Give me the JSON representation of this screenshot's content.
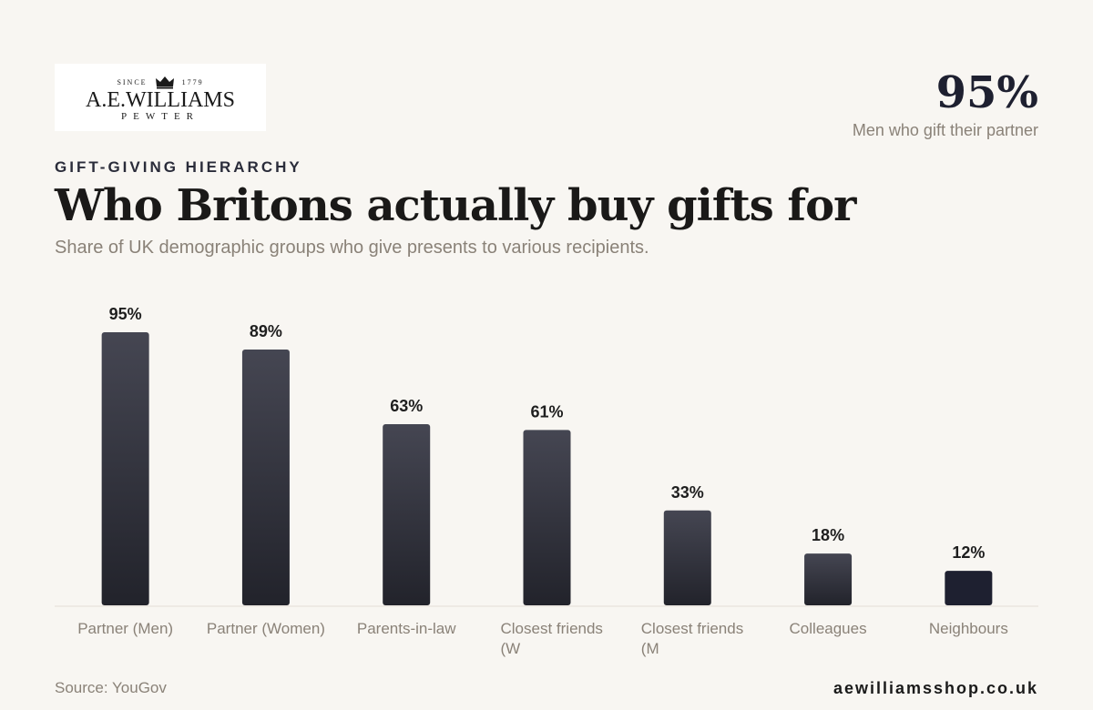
{
  "logo": {
    "since_text": "SINCE 1779",
    "brand": "A.E.WILLIAMS",
    "subtitle": "PEWTER",
    "icon": "crown-icon"
  },
  "headline_stat": {
    "value": "95%",
    "label": "Men who gift their partner"
  },
  "eyebrow": "GIFT-GIVING HIERARCHY",
  "title": "Who Britons actually buy gifts for",
  "subtitle": "Share of UK demographic groups who give presents to various recipients.",
  "source": "Source: YouGov",
  "site": "aewilliamsshop.co.uk",
  "colors": {
    "background": "#f8f6f2",
    "bar_top": "#454652",
    "bar_bottom": "#22232b",
    "accent_bar": "#1e2030",
    "muted_text": "#8a8278",
    "baseline": "#e3ded6"
  },
  "chart_data": {
    "type": "bar",
    "categories": [
      "Partner (Men)",
      "Partner (Women)",
      "Parents-in-law",
      "Closest friends (W",
      "Closest friends (M",
      "Colleagues",
      "Neighbours"
    ],
    "category_lines": [
      [
        "Partner (Men)"
      ],
      [
        "Partner (Women)"
      ],
      [
        "Parents-in-law"
      ],
      [
        "Closest friends",
        "(W"
      ],
      [
        "Closest friends",
        "(M"
      ],
      [
        "Colleagues"
      ],
      [
        "Neighbours"
      ]
    ],
    "values": [
      95,
      89,
      63,
      61,
      33,
      18,
      12
    ],
    "value_labels": [
      "95%",
      "89%",
      "63%",
      "61%",
      "33%",
      "18%",
      "12%"
    ],
    "unit": "%",
    "ylim": [
      0,
      95
    ],
    "grid": false,
    "legend": "none",
    "xlabel": "",
    "ylabel": ""
  }
}
